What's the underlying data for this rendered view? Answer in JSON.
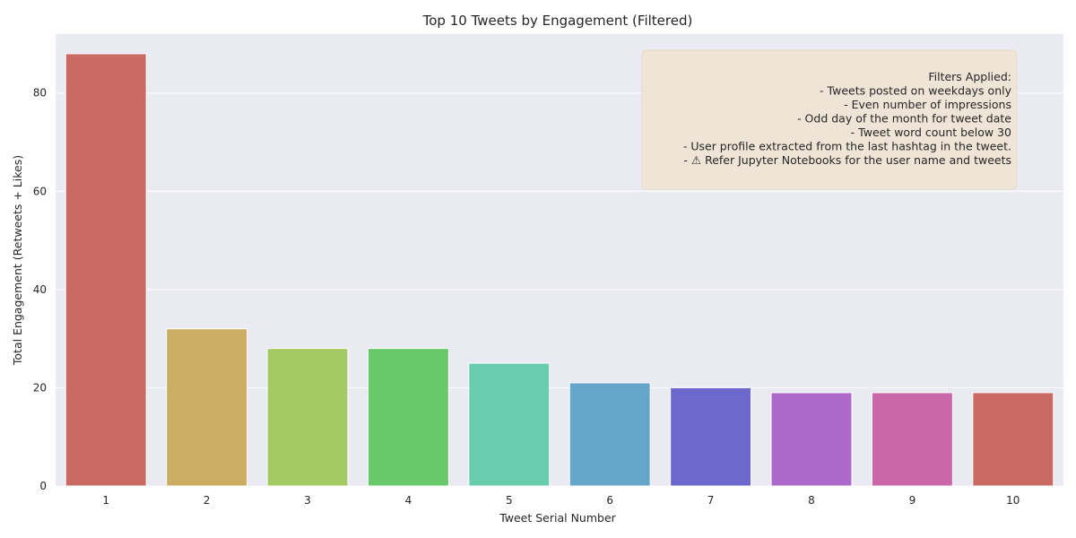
{
  "chart_data": {
    "type": "bar",
    "title": "Top 10 Tweets by Engagement (Filtered)",
    "xlabel": "Tweet Serial Number",
    "ylabel": "Total Engagement (Retweets + Likes)",
    "categories": [
      "1",
      "2",
      "3",
      "4",
      "5",
      "6",
      "7",
      "8",
      "9",
      "10"
    ],
    "values": [
      88,
      32,
      28,
      28,
      25,
      21,
      20,
      19,
      19,
      19
    ],
    "ylim": [
      0,
      92
    ],
    "yticks": [
      0,
      20,
      40,
      60,
      80
    ],
    "grid": true,
    "colors": [
      "#c96b63",
      "#cbad64",
      "#a4ca64",
      "#67c96a",
      "#69ccad",
      "#67a6cb",
      "#6d68cc",
      "#ad68cb",
      "#ca67a8",
      "#c96b63"
    ],
    "annotation": {
      "placement": "top-right",
      "lines": [
        "Filters Applied:",
        "- Tweets posted on weekdays only",
        "- Even number of impressions",
        "- Odd day of the month for tweet date",
        "- Tweet word count below 30",
        "- User profile extracted from the last hashtag in the tweet.",
        "- ⚠ Refer Jupyter Notebooks for the user name and tweets"
      ]
    }
  },
  "style": {
    "plot_background": "#eaeaf2",
    "grid_color": "#ffffff",
    "annotation_background": "#efe4d3"
  }
}
